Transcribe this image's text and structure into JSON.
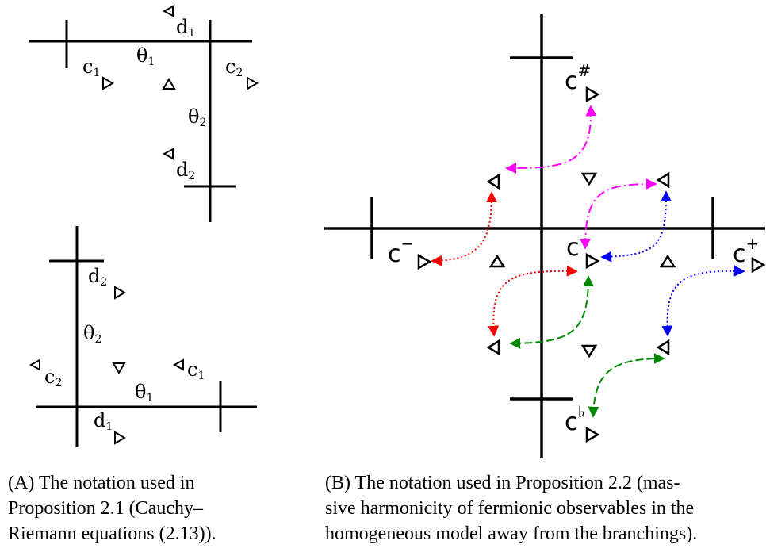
{
  "panel_a": {
    "top": {
      "d1": {
        "base": "d",
        "sub": "1"
      },
      "theta1": {
        "base": "θ",
        "sub": "1"
      },
      "c1": {
        "base": "c",
        "sub": "1"
      },
      "c2": {
        "base": "c",
        "sub": "2"
      },
      "theta2": {
        "base": "θ",
        "sub": "2"
      },
      "d2": {
        "base": "d",
        "sub": "2"
      }
    },
    "bottom": {
      "d2": {
        "base": "d",
        "sub": "2"
      },
      "theta2": {
        "base": "θ",
        "sub": "2"
      },
      "c2": {
        "base": "c",
        "sub": "2"
      },
      "c1": {
        "base": "c",
        "sub": "1"
      },
      "theta1": {
        "base": "θ",
        "sub": "1"
      },
      "d1": {
        "base": "d",
        "sub": "1"
      }
    }
  },
  "panel_b": {
    "c_sharp": {
      "base": "c",
      "sup": "#"
    },
    "c_minus": {
      "base": "c",
      "sup": "−"
    },
    "c_center": {
      "base": "c"
    },
    "c_plus": {
      "base": "c",
      "sup": "+"
    },
    "c_flat": {
      "base": "c",
      "sup": "♭"
    },
    "arrow_colors": {
      "magenta": "#ff00ff",
      "red": "#ff0000",
      "blue": "#0000ff",
      "green": "#008800"
    }
  },
  "captions": {
    "a_lines": [
      "(A)  The  notation  used  in",
      "Proposition    2.1    (Cauchy–",
      "Riemann equations (2.13))."
    ],
    "b_lines": [
      "(B) The notation used in Proposition 2.2 (mas-",
      "sive harmonicity of fermionic observables in the",
      "homogeneous model away from the branchings)."
    ]
  }
}
